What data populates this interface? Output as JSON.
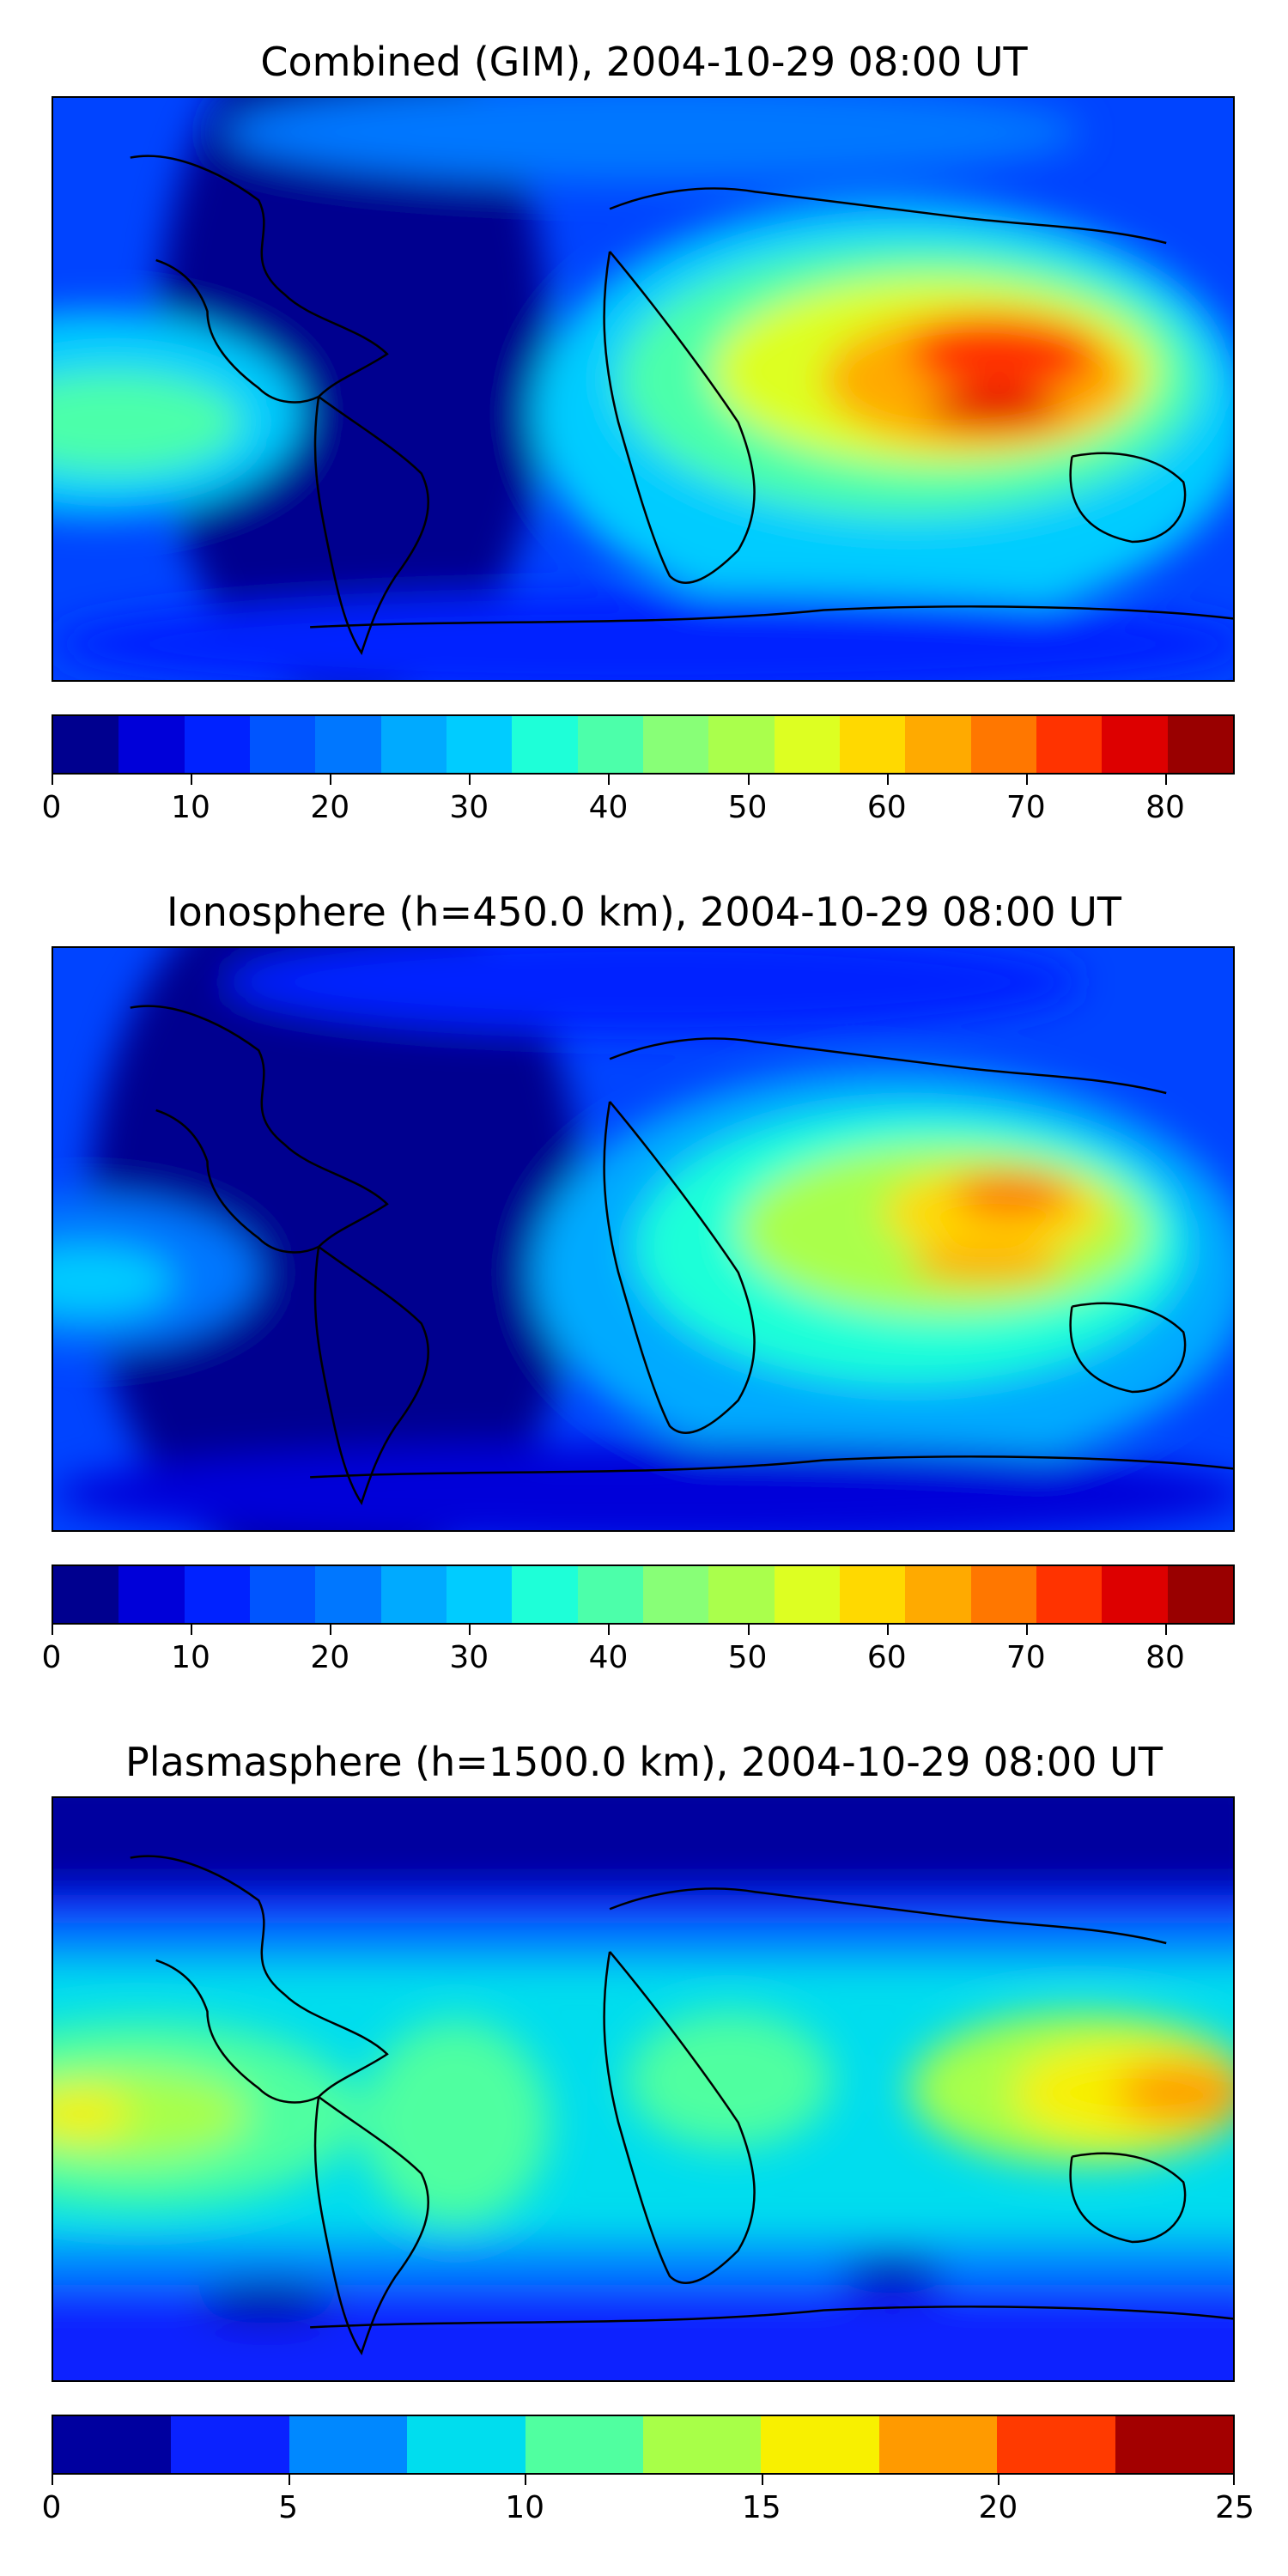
{
  "panels": [
    {
      "title": "Combined (GIM), 2004-10-29 08:00 UT",
      "colorbar": {
        "min": 0,
        "max": 85,
        "ticks": [
          "0",
          "10",
          "20",
          "30",
          "40",
          "50",
          "60",
          "70",
          "80"
        ],
        "colors": [
          "#00008f",
          "#0000d9",
          "#0022ff",
          "#0055ff",
          "#0077ff",
          "#00aaff",
          "#00ccff",
          "#1effd8",
          "#4cffaa",
          "#88ff77",
          "#aaff4c",
          "#ddff22",
          "#ffd900",
          "#ffaa00",
          "#ff7700",
          "#ff3300",
          "#dd0000",
          "#990000"
        ]
      }
    },
    {
      "title": "Ionosphere  (h=450.0 km), 2004-10-29 08:00 UT",
      "colorbar": {
        "min": 0,
        "max": 85,
        "ticks": [
          "0",
          "10",
          "20",
          "30",
          "40",
          "50",
          "60",
          "70",
          "80"
        ],
        "colors": [
          "#00008f",
          "#0000d9",
          "#0022ff",
          "#0055ff",
          "#0077ff",
          "#00aaff",
          "#00ccff",
          "#1effd8",
          "#4cffaa",
          "#88ff77",
          "#aaff4c",
          "#ddff22",
          "#ffd900",
          "#ffaa00",
          "#ff7700",
          "#ff3300",
          "#dd0000",
          "#990000"
        ]
      }
    },
    {
      "title": "Plasmasphere (h=1500.0 km), 2004-10-29 08:00 UT",
      "colorbar": {
        "min": 0,
        "max": 25,
        "ticks": [
          "0",
          "5",
          "10",
          "15",
          "20",
          "25"
        ],
        "colors": [
          "#00009f",
          "#0a22ff",
          "#0088ff",
          "#00ddee",
          "#50ffa0",
          "#a8ff48",
          "#f8f000",
          "#ff9a00",
          "#ff3a00",
          "#a30000"
        ]
      }
    }
  ]
}
